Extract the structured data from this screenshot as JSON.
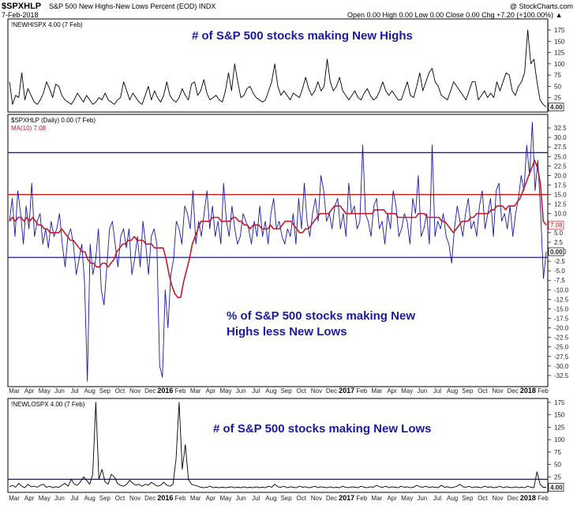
{
  "header": {
    "symbol": "$SPXHLP",
    "description": "S&P 500 New Highs-New Lows Percent (EOD) INDX",
    "date": "7-Feb-2018",
    "quote": "Open 0.00 High 0.00 Low 0.00 Close 0.00 Chg +7.20 (+100.00%) ▲",
    "watermark": "@ StockCharts.com"
  },
  "chart_data": [
    {
      "type": "line",
      "panel": "top",
      "legend": "!NEWHISPX 4.00 (7 Feb)",
      "last_value_label": "4.00",
      "annotation": "# of S&P 500 stocks making New Highs",
      "ylim": [
        0,
        175
      ],
      "yticks": [
        25,
        50,
        75,
        100,
        125,
        150,
        175
      ],
      "grid": false,
      "series": [
        {
          "color": "#000000",
          "values": [
            60,
            10,
            30,
            25,
            80,
            20,
            45,
            30,
            15,
            10,
            20,
            35,
            60,
            45,
            25,
            55,
            50,
            30,
            20,
            15,
            10,
            20,
            35,
            25,
            15,
            30,
            20,
            10,
            15,
            25,
            20,
            35,
            20,
            15,
            10,
            20,
            25,
            60,
            40,
            20,
            35,
            25,
            15,
            10,
            30,
            50,
            20,
            40,
            25,
            15,
            30,
            60,
            30,
            20,
            15,
            25,
            45,
            30,
            20,
            55,
            60,
            30,
            40,
            65,
            35,
            20,
            25,
            30,
            20,
            15,
            40,
            80,
            40,
            100,
            60,
            25,
            30,
            45,
            50,
            35,
            25,
            20,
            15,
            20,
            40,
            60,
            100,
            50,
            30,
            40,
            30,
            20,
            35,
            30,
            25,
            45,
            70,
            45,
            30,
            40,
            60,
            40,
            50,
            110,
            60,
            40,
            50,
            70,
            40,
            30,
            20,
            30,
            40,
            25,
            20,
            35,
            45,
            30,
            20,
            25,
            40,
            60,
            40,
            30,
            40,
            30,
            20,
            20,
            40,
            60,
            30,
            25,
            50,
            80,
            40,
            60,
            80,
            90,
            60,
            50,
            30,
            25,
            20,
            40,
            60,
            50,
            40,
            30,
            20,
            40,
            60,
            60,
            20,
            30,
            40,
            25,
            35,
            25,
            60,
            40,
            60,
            80,
            75,
            40,
            30,
            50,
            60,
            80,
            175,
            100,
            110,
            60,
            20,
            10,
            4
          ]
        }
      ],
      "xticks": [
        "Mar",
        "Apr",
        "May",
        "Jun",
        "Jul",
        "Aug",
        "Sep",
        "Oct",
        "Nov",
        "Dec",
        "2016",
        "Feb",
        "Mar",
        "Apr",
        "May",
        "Jun",
        "Jul",
        "Aug",
        "Sep",
        "Oct",
        "Nov",
        "Dec",
        "2017",
        "Feb",
        "Mar",
        "Apr",
        "May",
        "Jun",
        "Jul",
        "Aug",
        "Sep",
        "Oct",
        "Nov",
        "Dec",
        "2018",
        "Feb"
      ]
    },
    {
      "type": "line",
      "panel": "middle",
      "legend": "$SPXHLP (Daily) 0.00 (7 Feb)",
      "ma_legend": "MA(10) 7.08",
      "last_value_label": "0.00",
      "ma_value_label": "7.08",
      "annotation_line1": "% of S&P 500 stocks making New",
      "annotation_line2": "Highs less New Lows",
      "ylim": [
        -35,
        35
      ],
      "yticks": [
        32.5,
        30.0,
        27.5,
        25.0,
        22.5,
        20.0,
        17.5,
        15.0,
        12.5,
        10.0,
        7.5,
        5.0,
        2.5,
        0.0,
        -2.5,
        -5.0,
        -7.5,
        -10.0,
        -12.5,
        -15.0,
        -17.5,
        -20.0,
        -22.5,
        -25.0,
        -27.5,
        -30.0,
        -32.5
      ],
      "hlines": [
        {
          "y": 26,
          "color": "#1a1aa0"
        },
        {
          "y": 15,
          "color": "#cc1111"
        },
        {
          "y": -1.5,
          "color": "#1a1aa0"
        }
      ],
      "grid": false,
      "series": [
        {
          "name": "$SPXHLP",
          "color": "#1a1aa0",
          "values": [
            8,
            14,
            4,
            16,
            10,
            2,
            12,
            6,
            18,
            4,
            8,
            10,
            2,
            6,
            1,
            8,
            4,
            6,
            10,
            2,
            -4,
            4,
            6,
            2,
            -6,
            -2,
            2,
            -8,
            -34,
            2,
            -6,
            -2,
            6,
            -10,
            -14,
            -4,
            6,
            8,
            2,
            -4,
            4,
            6,
            1,
            6,
            -6,
            -2,
            4,
            -4,
            8,
            2,
            -6,
            4,
            6,
            2,
            -30,
            -33,
            -10,
            -20,
            -6,
            -2,
            8,
            6,
            2,
            12,
            10,
            6,
            16,
            2,
            8,
            4,
            10,
            16,
            6,
            12,
            4,
            8,
            2,
            18,
            8,
            4,
            12,
            6,
            2,
            4,
            10,
            8,
            6,
            2,
            8,
            4,
            12,
            4,
            8,
            2,
            10,
            14,
            6,
            8,
            4,
            2,
            6,
            4,
            10,
            2,
            14,
            6,
            18,
            8,
            4,
            10,
            14,
            8,
            20,
            16,
            8,
            10,
            6,
            12,
            14,
            6,
            10,
            4,
            18,
            10,
            12,
            6,
            8,
            28,
            10,
            8,
            4,
            12,
            14,
            6,
            8,
            2,
            10,
            6,
            16,
            12,
            4,
            6,
            10,
            8,
            2,
            14,
            10,
            20,
            4,
            6,
            10,
            2,
            28,
            4,
            8,
            6,
            10,
            4,
            2,
            -3,
            6,
            12,
            8,
            4,
            10,
            14,
            6,
            8,
            4,
            12,
            16,
            6,
            10,
            14,
            4,
            16,
            18,
            8,
            10,
            6,
            12,
            4,
            10,
            14,
            20,
            16,
            28,
            20,
            34,
            16,
            24,
            10,
            -7,
            0
          ]
        },
        {
          "name": "MA(10)",
          "color": "#c21a2a",
          "values": [
            8,
            9,
            8,
            9,
            9,
            8,
            9,
            8,
            9,
            8,
            7,
            7,
            6,
            6,
            5,
            5,
            5,
            5,
            6,
            5,
            4,
            3,
            3,
            2,
            1,
            0,
            0,
            -2,
            -3,
            -3,
            -4,
            -4,
            -3,
            -3,
            -4,
            -3,
            -2,
            0,
            1,
            2,
            2,
            3,
            3,
            4,
            3,
            3,
            3,
            2,
            2,
            2,
            1,
            1,
            1,
            1,
            -2,
            -6,
            -9,
            -11,
            -12,
            -12,
            -8,
            -5,
            -2,
            2,
            4,
            6,
            8,
            8,
            8,
            8,
            9,
            9,
            9,
            8,
            8,
            8,
            8,
            9,
            9,
            8,
            8,
            7,
            7,
            6,
            7,
            7,
            7,
            6,
            6,
            6,
            7,
            6,
            6,
            6,
            7,
            8,
            8,
            8,
            7,
            6,
            5,
            5,
            6,
            6,
            7,
            8,
            9,
            10,
            10,
            10,
            10,
            11,
            12,
            12,
            12,
            11,
            10,
            10,
            10,
            10,
            10,
            10,
            10,
            10,
            10,
            10,
            11,
            11,
            11,
            11,
            10,
            10,
            10,
            10,
            9,
            9,
            9,
            9,
            9,
            9,
            9,
            10,
            10,
            10,
            9,
            9,
            9,
            9,
            9,
            8,
            8,
            7,
            6,
            5,
            6,
            7,
            8,
            8,
            8,
            9,
            9,
            10,
            10,
            10,
            10,
            10,
            11,
            11,
            12,
            12,
            12,
            11,
            12,
            12,
            12,
            13,
            14,
            16,
            18,
            20,
            22,
            24,
            22,
            18,
            8,
            7
          ]
        }
      ]
    },
    {
      "type": "line",
      "panel": "bottom",
      "legend": "!NEWLOSPX 4.00 (7 Feb)",
      "last_value_label": "4.00",
      "annotation": "# of S&P 500 stocks making New Lows",
      "ylim": [
        0,
        175
      ],
      "yticks": [
        25,
        50,
        75,
        100,
        125,
        150,
        175
      ],
      "hlines": [
        {
          "y": 20,
          "color": "#1a1aa0"
        }
      ],
      "grid": false,
      "series": [
        {
          "color": "#000000",
          "values": [
            5,
            8,
            4,
            12,
            6,
            3,
            10,
            5,
            6,
            4,
            8,
            10,
            4,
            6,
            3,
            5,
            4,
            8,
            12,
            6,
            20,
            10,
            8,
            15,
            25,
            18,
            10,
            30,
            178,
            20,
            40,
            15,
            10,
            30,
            25,
            12,
            8,
            6,
            10,
            18,
            12,
            8,
            10,
            6,
            10,
            8,
            14,
            10,
            6,
            8,
            14,
            8,
            6,
            10,
            60,
            175,
            40,
            90,
            20,
            10,
            8,
            6,
            4,
            3,
            4,
            6,
            3,
            4,
            3,
            4,
            3,
            4,
            5,
            3,
            4,
            3,
            5,
            3,
            4,
            3,
            5,
            3,
            4,
            3,
            6,
            4,
            10,
            5,
            4,
            6,
            3,
            5,
            4,
            3,
            6,
            4,
            5,
            3,
            4,
            6,
            3,
            5,
            4,
            3,
            5,
            3,
            4,
            3,
            6,
            4,
            3,
            5,
            4,
            3,
            6,
            4,
            3,
            5,
            4,
            8,
            5,
            4,
            6,
            3,
            5,
            4,
            3,
            6,
            4,
            5,
            3,
            4,
            8,
            5,
            4,
            6,
            3,
            5,
            4,
            3,
            8,
            4,
            5,
            3,
            4,
            6,
            10,
            5,
            4,
            6,
            3,
            5,
            4,
            3,
            6,
            4,
            5,
            3,
            4,
            6,
            3,
            5,
            4,
            3,
            5,
            3,
            4,
            3,
            6,
            4,
            3,
            35,
            10,
            4,
            4
          ]
        }
      ]
    }
  ]
}
